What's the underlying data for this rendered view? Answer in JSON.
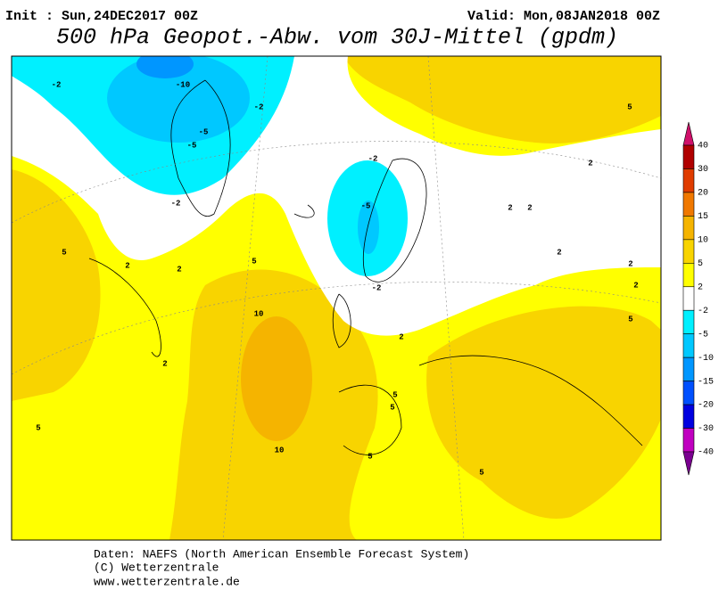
{
  "header": {
    "init": "Init : Sun,24DEC2017 00Z",
    "valid": "Valid: Mon,08JAN2018 00Z",
    "title": "500 hPa Geopot.-Abw. vom 30J-Mittel (gpdm)"
  },
  "colorbar": {
    "levels": [
      40,
      30,
      20,
      15,
      10,
      5,
      2,
      -2,
      -5,
      -10,
      -15,
      -20,
      -30,
      -40
    ],
    "colors": [
      "#d0106a",
      "#b00000",
      "#e03c00",
      "#f07800",
      "#f5b400",
      "#f8d400",
      "#ffff00",
      "#ffffff",
      "#00f0ff",
      "#00c8ff",
      "#0096ff",
      "#0050ff",
      "#0000e0",
      "#c000c0",
      "#7a0090"
    ]
  },
  "contour_labels": [
    "-2",
    "-10",
    "-5",
    "-5",
    "-2",
    "-2",
    "-2",
    "-5",
    "-2",
    "2",
    "2",
    "5",
    "10",
    "10",
    "2",
    "5",
    "5",
    "5",
    "2",
    "2",
    "2",
    "2",
    "2",
    "2",
    "5",
    "2",
    "5",
    "5",
    "5",
    "5"
  ],
  "footer": [
    "Daten: NAEFS (North American Ensemble Forecast System)",
    "(C) Wetterzentrale",
    "www.wetterzentrale.de"
  ]
}
